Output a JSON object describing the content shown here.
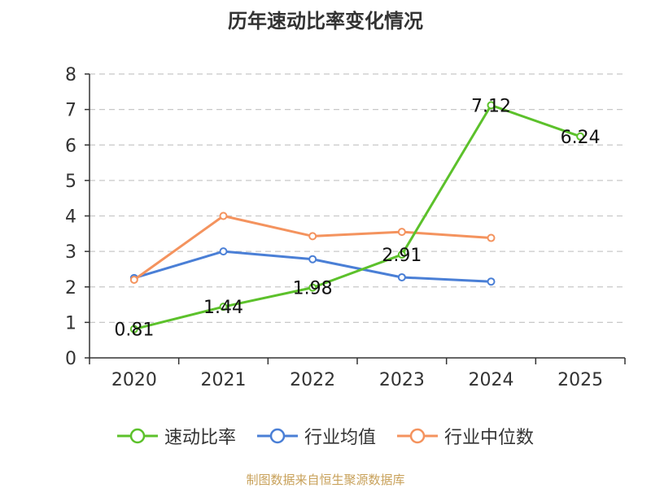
{
  "chart_data": {
    "type": "line",
    "title": "历年速动比率变化情况",
    "categories": [
      "2020",
      "2021",
      "2022",
      "2023",
      "2024",
      "2025"
    ],
    "ylim": [
      0,
      8
    ],
    "yticks": [
      "0",
      "1",
      "2",
      "3",
      "4",
      "5",
      "6",
      "7",
      "8"
    ],
    "grid": true,
    "legend_position": "bottom",
    "series": [
      {
        "name": "速动比率",
        "color": "#5cc12b",
        "values": [
          0.81,
          1.44,
          1.98,
          2.91,
          7.12,
          6.24
        ],
        "labels": [
          "0.81",
          "1.44",
          "1.98",
          "2.91",
          "7.12",
          "6.24"
        ]
      },
      {
        "name": "行业均值",
        "color": "#4a7fd6",
        "values": [
          2.25,
          3.0,
          2.78,
          2.27,
          2.15,
          null
        ]
      },
      {
        "name": "行业中位数",
        "color": "#f4935e",
        "values": [
          2.2,
          4.0,
          3.43,
          3.55,
          3.38,
          null
        ]
      }
    ]
  },
  "source": "制图数据来自恒生聚源数据库"
}
